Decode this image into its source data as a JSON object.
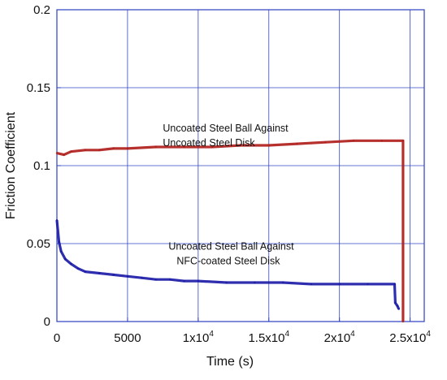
{
  "chart_data": {
    "type": "line",
    "xlabel": "Time (s)",
    "ylabel": "Friction Coefficient",
    "xlim": [
      0,
      26000
    ],
    "ylim": [
      0,
      0.2
    ],
    "grid": true,
    "x_ticks": [
      {
        "value": 0,
        "label": "0"
      },
      {
        "value": 5000,
        "label": "5000"
      },
      {
        "value": 10000,
        "mant": "1x10",
        "exp": "4"
      },
      {
        "value": 15000,
        "mant": "1.5x10",
        "exp": "4"
      },
      {
        "value": 20000,
        "mant": "2x10",
        "exp": "4"
      },
      {
        "value": 25000,
        "mant": "2.5x10",
        "exp": "4"
      }
    ],
    "y_ticks": [
      {
        "value": 0,
        "label": "0"
      },
      {
        "value": 0.05,
        "label": "0.05"
      },
      {
        "value": 0.1,
        "label": "0.1"
      },
      {
        "value": 0.15,
        "label": "0.15"
      },
      {
        "value": 0.2,
        "label": "0.2"
      }
    ],
    "series": [
      {
        "color": "#b0201c",
        "points": [
          [
            0,
            0.108
          ],
          [
            500,
            0.107
          ],
          [
            1000,
            0.109
          ],
          [
            2000,
            0.11
          ],
          [
            3000,
            0.11
          ],
          [
            4000,
            0.111
          ],
          [
            5000,
            0.111
          ],
          [
            7000,
            0.112
          ],
          [
            9000,
            0.112
          ],
          [
            11000,
            0.112
          ],
          [
            13000,
            0.113
          ],
          [
            15000,
            0.113
          ],
          [
            17000,
            0.114
          ],
          [
            19000,
            0.115
          ],
          [
            21000,
            0.116
          ],
          [
            23000,
            0.116
          ],
          [
            24500,
            0.116
          ],
          [
            24500,
            0.0
          ]
        ]
      },
      {
        "color": "#1c1ca8",
        "points": [
          [
            0,
            0.065
          ],
          [
            150,
            0.051
          ],
          [
            300,
            0.045
          ],
          [
            600,
            0.04
          ],
          [
            1000,
            0.037
          ],
          [
            1500,
            0.034
          ],
          [
            2000,
            0.032
          ],
          [
            3000,
            0.031
          ],
          [
            4000,
            0.03
          ],
          [
            5000,
            0.029
          ],
          [
            6000,
            0.028
          ],
          [
            7000,
            0.027
          ],
          [
            8000,
            0.027
          ],
          [
            9000,
            0.026
          ],
          [
            10000,
            0.026
          ],
          [
            12000,
            0.025
          ],
          [
            14000,
            0.025
          ],
          [
            16000,
            0.025
          ],
          [
            18000,
            0.024
          ],
          [
            20000,
            0.024
          ],
          [
            22000,
            0.024
          ],
          [
            23900,
            0.024
          ],
          [
            23950,
            0.012
          ],
          [
            24100,
            0.01
          ],
          [
            24200,
            0.008
          ]
        ]
      }
    ],
    "annotations": [
      {
        "lines": [
          "Uncoated Steel Ball Against",
          "Uncoated Steel Disk"
        ],
        "x": 7500,
        "y": 0.122,
        "color": "#111111"
      },
      {
        "lines": [
          "Uncoated  Steel Ball Against",
          "NFC-coated Steel Disk"
        ],
        "x": 7900,
        "y": 0.046,
        "color": "#111111"
      }
    ]
  }
}
